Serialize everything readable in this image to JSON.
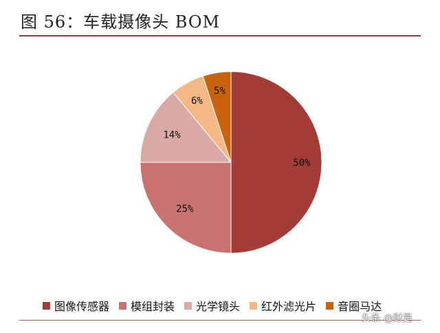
{
  "title": "图 56：车载摄像头 BOM",
  "watermark": "头条 @财是",
  "chart_data": {
    "type": "pie",
    "categories": [
      "图像传感器",
      "模组封装",
      "光学镜头",
      "红外滤光片",
      "音圈马达"
    ],
    "values": [
      50,
      25,
      14,
      6,
      5
    ],
    "labels": [
      "50%",
      "25%",
      "14%",
      "6%",
      "5%"
    ],
    "colors": [
      "#a33b37",
      "#c87370",
      "#d9a9a5",
      "#f3b886",
      "#c8620c"
    ],
    "start": "12 o'clock",
    "direction": "clockwise",
    "legend_position": "bottom"
  }
}
